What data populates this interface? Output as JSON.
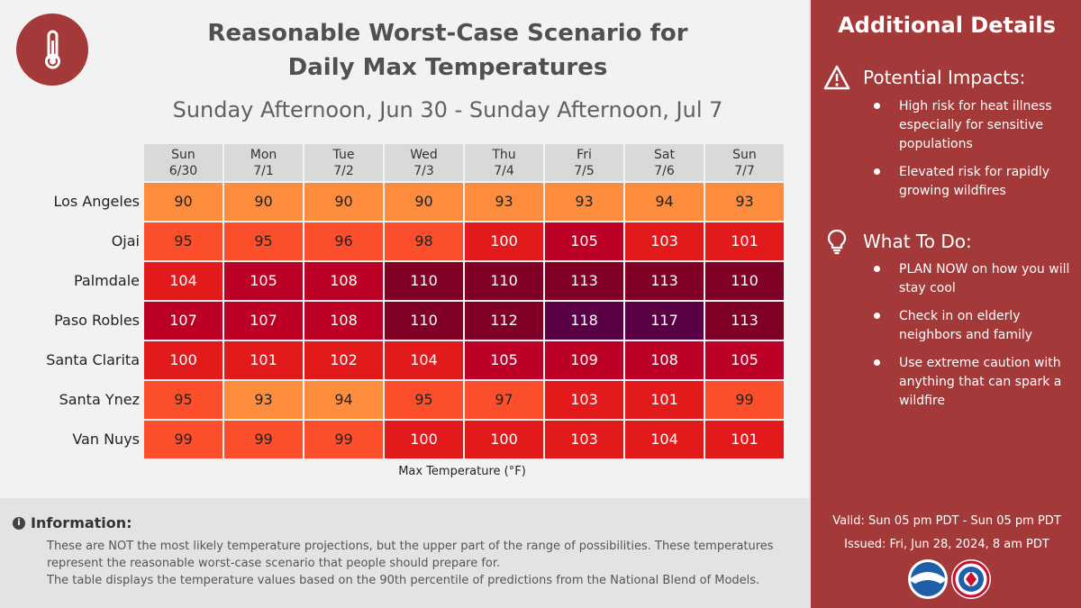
{
  "title_line1": "Reasonable Worst-Case Scenario for",
  "title_line2": "Daily Max Temperatures",
  "subtitle": "Sunday Afternoon, Jun 30 - Sunday Afternoon, Jul 7",
  "icons": {
    "badge": "thermometer-icon",
    "info": "info-icon",
    "impacts": "warning-triangle-icon",
    "todo": "lightbulb-icon",
    "logo1": "noaa-logo",
    "logo2": "nws-logo"
  },
  "chart_data": {
    "type": "table",
    "title": "Reasonable Worst-Case Scenario for Daily Max Temperatures",
    "xlabel": "Max Temperature (°F)",
    "columns": [
      {
        "day": "Sun",
        "date": "6/30"
      },
      {
        "day": "Mon",
        "date": "7/1"
      },
      {
        "day": "Tue",
        "date": "7/2"
      },
      {
        "day": "Wed",
        "date": "7/3"
      },
      {
        "day": "Thu",
        "date": "7/4"
      },
      {
        "day": "Fri",
        "date": "7/5"
      },
      {
        "day": "Sat",
        "date": "7/6"
      },
      {
        "day": "Sun",
        "date": "7/7"
      }
    ],
    "rows": [
      {
        "name": "Los Angeles",
        "values": [
          90,
          90,
          90,
          90,
          93,
          93,
          94,
          93
        ]
      },
      {
        "name": "Ojai",
        "values": [
          95,
          95,
          96,
          98,
          100,
          105,
          103,
          101
        ]
      },
      {
        "name": "Palmdale",
        "values": [
          104,
          105,
          108,
          110,
          110,
          113,
          113,
          110
        ]
      },
      {
        "name": "Paso Robles",
        "values": [
          107,
          107,
          108,
          110,
          112,
          118,
          117,
          113
        ]
      },
      {
        "name": "Santa Clarita",
        "values": [
          100,
          101,
          102,
          104,
          105,
          109,
          108,
          105
        ]
      },
      {
        "name": "Santa Ynez",
        "values": [
          95,
          93,
          94,
          95,
          97,
          103,
          101,
          99
        ]
      },
      {
        "name": "Van Nuys",
        "values": [
          99,
          99,
          99,
          100,
          100,
          103,
          104,
          101
        ]
      }
    ]
  },
  "info": {
    "title": "Information:",
    "line1": "These are NOT the most likely temperature projections, but the upper part of the range of possibilities. These temperatures represent the reasonable worst-case scenario that people should prepare for.",
    "line2": "The table displays the temperature values based on the 90th percentile of predictions from the National Blend of Models."
  },
  "side": {
    "title": "Additional Details",
    "impacts_heading": "Potential Impacts:",
    "impacts": [
      "High risk for heat illness especially for sensitive populations",
      "Elevated risk for rapidly growing wildfires"
    ],
    "todo_heading": "What To Do:",
    "todo": [
      "PLAN NOW on how you will stay cool",
      "Check in on elderly neighbors and family",
      "Use extreme caution with anything that can spark a wildfire"
    ],
    "valid": "Valid: Sun 05 pm PDT - Sun 05 pm PDT",
    "issued": "Issued: Fri, Jun 28, 2024, 8 am PDT"
  },
  "colors": {
    "brand": "#a43939",
    "t90_94": "#fd8d3c",
    "t95_99": "#fc4e2a",
    "t100_104": "#e31a1c",
    "t105_109": "#bd0026",
    "t110_114": "#800026",
    "t115_plus": "#5c0046"
  }
}
